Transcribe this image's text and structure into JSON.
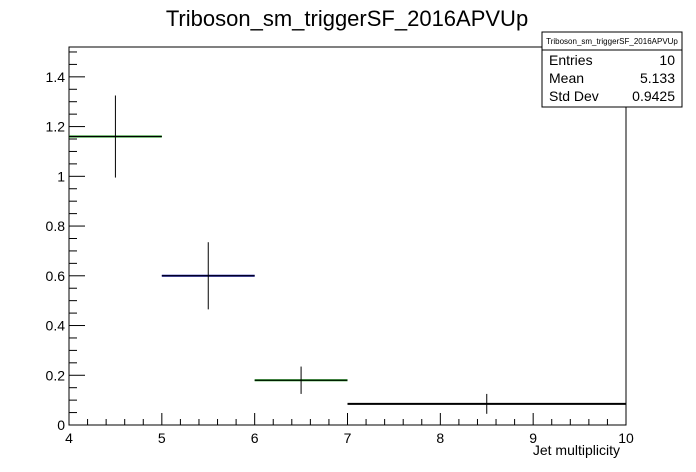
{
  "chart_data": {
    "type": "histogram",
    "title": "Triboson_sm_triggerSF_2016APVUp",
    "xlabel": "Jet multiplicity",
    "ylabel": "",
    "xlim": [
      4,
      10
    ],
    "ylim": [
      0,
      1.52
    ],
    "x_ticks": [
      "4",
      "5",
      "6",
      "7",
      "8",
      "9",
      "10"
    ],
    "y_ticks": [
      "0",
      "0.2",
      "0.4",
      "0.6",
      "0.8",
      "1",
      "1.2",
      "1.4"
    ],
    "bins": [
      {
        "low": 4,
        "high": 5,
        "value": 1.16,
        "err": 0.165,
        "color": "#008000"
      },
      {
        "low": 5,
        "high": 6,
        "value": 0.6,
        "err": 0.135,
        "color": "#000099"
      },
      {
        "low": 6,
        "high": 7,
        "value": 0.18,
        "err": 0.055,
        "color": "#008000"
      },
      {
        "low": 7,
        "high": 10,
        "value": 0.085,
        "err": 0.04,
        "color": "#000000"
      }
    ],
    "stats": {
      "name": "Triboson_sm_triggerSF_2016APVUp",
      "rows": [
        {
          "label": "Entries",
          "value": "10"
        },
        {
          "label": "Mean",
          "value": "5.133"
        },
        {
          "label": "Std Dev",
          "value": "0.9425"
        }
      ]
    }
  }
}
